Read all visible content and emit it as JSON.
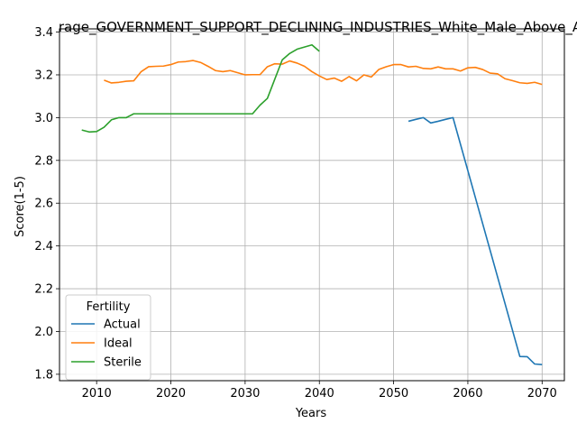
{
  "chart_data": {
    "type": "line",
    "title": "rage_GOVERNMENT_SUPPORT_DECLINING_INDUSTRIES_White_Male_Above_A",
    "xlabel": "Years",
    "ylabel": "Score(1-5)",
    "xlim": [
      2005,
      2073
    ],
    "ylim": [
      1.77,
      3.415
    ],
    "xticks": [
      2010,
      2020,
      2030,
      2040,
      2050,
      2060,
      2070
    ],
    "yticks": [
      1.8,
      2.0,
      2.2,
      2.4,
      2.6,
      2.8,
      3.0,
      3.2,
      3.4
    ],
    "xtick_labels": [
      "2010",
      "2020",
      "2030",
      "2040",
      "2050",
      "2060",
      "2070"
    ],
    "ytick_labels": [
      "1.8",
      "2.0",
      "2.2",
      "2.4",
      "2.6",
      "2.8",
      "3.0",
      "3.2",
      "3.4"
    ],
    "grid": true,
    "legend": {
      "title": "Fertility",
      "placement": "lower-left"
    },
    "series": [
      {
        "name": "Actual",
        "color": "#1f77b4",
        "x": [
          2052,
          2053,
          2054,
          2055,
          2056,
          2057,
          2058,
          2067,
          2068,
          2069,
          2070
        ],
        "y": [
          2.983,
          2.992,
          3.0,
          2.975,
          2.983,
          2.992,
          3.0,
          1.883,
          1.882,
          1.848,
          1.845
        ]
      },
      {
        "name": "Ideal",
        "color": "#ff7f0e",
        "x": [
          2011,
          2012,
          2013,
          2014,
          2015,
          2016,
          2017,
          2018,
          2019,
          2020,
          2021,
          2022,
          2023,
          2024,
          2025,
          2026,
          2027,
          2028,
          2029,
          2030,
          2031,
          2032,
          2033,
          2034,
          2035,
          2036,
          2037,
          2038,
          2039,
          2040,
          2041,
          2042,
          2043,
          2044,
          2045,
          2046,
          2047,
          2048,
          2049,
          2050,
          2051,
          2052,
          2053,
          2054,
          2055,
          2056,
          2057,
          2058,
          2059,
          2060,
          2061,
          2062,
          2063,
          2064,
          2065,
          2066,
          2067,
          2068,
          2069,
          2070
        ],
        "y": [
          3.175,
          3.162,
          3.165,
          3.17,
          3.172,
          3.215,
          3.238,
          3.24,
          3.241,
          3.248,
          3.26,
          3.262,
          3.267,
          3.258,
          3.24,
          3.22,
          3.215,
          3.22,
          3.21,
          3.2,
          3.201,
          3.201,
          3.238,
          3.252,
          3.25,
          3.265,
          3.255,
          3.24,
          3.215,
          3.195,
          3.178,
          3.185,
          3.17,
          3.192,
          3.172,
          3.2,
          3.19,
          3.225,
          3.238,
          3.248,
          3.248,
          3.237,
          3.24,
          3.23,
          3.228,
          3.237,
          3.228,
          3.228,
          3.218,
          3.233,
          3.235,
          3.225,
          3.208,
          3.205,
          3.182,
          3.173,
          3.163,
          3.16,
          3.165,
          3.155
        ]
      },
      {
        "name": "Sterile",
        "color": "#2ca02c",
        "x": [
          2008,
          2009,
          2010,
          2011,
          2012,
          2013,
          2014,
          2015,
          2016,
          2017,
          2018,
          2019,
          2020,
          2021,
          2022,
          2023,
          2024,
          2025,
          2026,
          2027,
          2028,
          2029,
          2030,
          2031,
          2032,
          2033,
          2034,
          2035,
          2036,
          2037,
          2038,
          2039,
          2040
        ],
        "y": [
          2.942,
          2.933,
          2.935,
          2.955,
          2.99,
          3.0,
          3.0,
          3.018,
          3.018,
          3.018,
          3.018,
          3.018,
          3.018,
          3.018,
          3.018,
          3.018,
          3.018,
          3.018,
          3.018,
          3.018,
          3.018,
          3.018,
          3.018,
          3.018,
          3.058,
          3.09,
          3.18,
          3.27,
          3.3,
          3.32,
          3.33,
          3.34,
          3.31
        ]
      }
    ]
  }
}
